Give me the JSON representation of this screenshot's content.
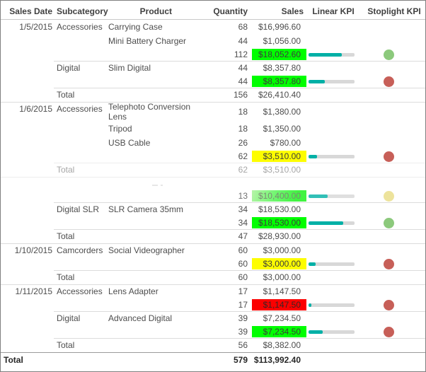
{
  "header": {
    "sales_date": "Sales Date",
    "subcategory": "Subcategory",
    "product": "Product",
    "quantity": "Quantity",
    "sales": "Sales",
    "linear_kpi": "Linear KPI",
    "stoplight_kpi": "Stoplight KPI"
  },
  "colors": {
    "cell_lime": "#00fe00",
    "cell_yellow": "#fdfd00",
    "cell_red": "#fb0000",
    "kpi_bar_fill": "#00b0a6",
    "kpi_bar_track": "#d8d8d8",
    "stoplight": {
      "green": "#8cc97c",
      "yellow": "#e9dc83",
      "red": "#c75f58"
    }
  },
  "rows": [
    {
      "type": "detail",
      "date": "1/5/2015",
      "subcategory": "Accessories",
      "product": "Carrying Case",
      "quantity": "68",
      "sales": "$16,996.60"
    },
    {
      "type": "detail",
      "product": "Mini Battery Charger",
      "quantity": "44",
      "sales": "$1,056.00"
    },
    {
      "type": "subtotal",
      "quantity": "112",
      "sales": "$18,052.60",
      "sales_bg": "lime",
      "kpi_fill_pct": 72,
      "stoplight": "green"
    },
    {
      "type": "detail",
      "subcategory": "Digital",
      "product": "Slim Digital",
      "quantity": "44",
      "sales": "$8,357.80",
      "line": "partial"
    },
    {
      "type": "subtotal",
      "quantity": "44",
      "sales": "$8,357.80",
      "sales_bg": "lime",
      "kpi_fill_pct": 35,
      "stoplight": "red"
    },
    {
      "type": "total",
      "label": "Total",
      "quantity": "156",
      "sales": "$26,410.40",
      "line": "partial"
    },
    {
      "type": "detail",
      "date": "1/6/2015",
      "subcategory": "Accessories",
      "product": "Telephoto Conversion Lens",
      "quantity": "18",
      "sales": "$1,380.00",
      "line": "full"
    },
    {
      "type": "detail",
      "product": "Tripod",
      "quantity": "18",
      "sales": "$1,350.00"
    },
    {
      "type": "detail",
      "product": "USB Cable",
      "quantity": "26",
      "sales": "$780.00"
    },
    {
      "type": "subtotal",
      "quantity": "62",
      "sales": "$3,510.00",
      "sales_bg": "yellow",
      "kpi_fill_pct": 18,
      "stoplight": "red"
    },
    {
      "type": "total",
      "label": "Total",
      "quantity": "62",
      "sales": "$3,510.00",
      "line": "partial",
      "faded": true
    },
    {
      "type": "spacer",
      "line": "full",
      "faded": true
    },
    {
      "type": "subtotal",
      "quantity": "13",
      "sales": "$10,400.00",
      "sales_bg": "lime_fade",
      "kpi_fill_pct": 41,
      "stoplight": "yellow",
      "faded_mid": true
    },
    {
      "type": "detail",
      "subcategory": "Digital SLR",
      "product": "SLR Camera 35mm",
      "quantity": "34",
      "sales": "$18,530.00",
      "line": "partial"
    },
    {
      "type": "subtotal",
      "quantity": "34",
      "sales": "$18,530.00",
      "sales_bg": "lime",
      "kpi_fill_pct": 76,
      "stoplight": "green"
    },
    {
      "type": "total",
      "label": "Total",
      "quantity": "47",
      "sales": "$28,930.00",
      "line": "partial"
    },
    {
      "type": "detail",
      "date": "1/10/2015",
      "subcategory": "Camcorders",
      "product": "Social Videographer",
      "quantity": "60",
      "sales": "$3,000.00",
      "line": "full"
    },
    {
      "type": "subtotal",
      "quantity": "60",
      "sales": "$3,000.00",
      "sales_bg": "yellow",
      "kpi_fill_pct": 16,
      "stoplight": "red"
    },
    {
      "type": "total",
      "label": "Total",
      "quantity": "60",
      "sales": "$3,000.00",
      "line": "partial"
    },
    {
      "type": "detail",
      "date": "1/11/2015",
      "subcategory": "Accessories",
      "product": "Lens Adapter",
      "quantity": "17",
      "sales": "$1,147.50",
      "line": "full"
    },
    {
      "type": "subtotal",
      "quantity": "17",
      "sales": "$1,147.50",
      "sales_bg": "red",
      "kpi_fill_pct": 6,
      "stoplight": "red"
    },
    {
      "type": "detail",
      "subcategory": "Digital",
      "product": "Advanced Digital",
      "quantity": "39",
      "sales": "$7,234.50",
      "line": "partial"
    },
    {
      "type": "subtotal",
      "quantity": "39",
      "sales": "$7,234.50",
      "sales_bg": "lime",
      "kpi_fill_pct": 31,
      "stoplight": "red"
    },
    {
      "type": "total",
      "label": "Total",
      "quantity": "56",
      "sales": "$8,382.00",
      "line": "partial"
    },
    {
      "type": "grand_total",
      "label": "Total",
      "quantity": "579",
      "sales": "$113,992.40",
      "line": "dark"
    }
  ]
}
